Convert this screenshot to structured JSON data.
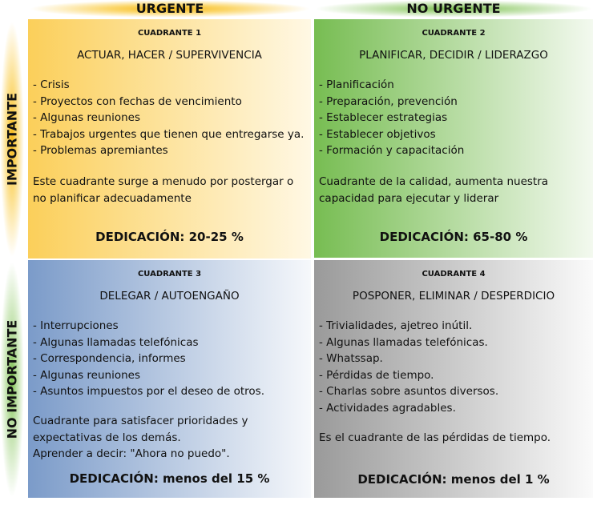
{
  "columns": [
    "URGENTE",
    "NO URGENTE"
  ],
  "rows": [
    "IMPORTANTE",
    "NO IMPORTANTE"
  ],
  "colors": {
    "q1": "#fbcf5a",
    "q2": "#77bd52",
    "q3": "#7b9bc9",
    "q4": "#9a9a9a"
  },
  "quadrants": [
    {
      "title": "CUADRANTE 1",
      "subtitle": "ACTUAR, HACER / SUPERVIVENCIA",
      "items": [
        "- Crisis",
        "- Proyectos con fechas de vencimiento",
        "- Algunas reuniones",
        "- Trabajos urgentes que tienen que entregarse ya.",
        "- Problemas apremiantes"
      ],
      "description": [
        "Este cuadrante surge a menudo por postergar o",
        "no planificar adecuadamente"
      ],
      "dedication": "DEDICACIÓN: 20-25 %"
    },
    {
      "title": "CUADRANTE 2",
      "subtitle": "PLANIFICAR, DECIDIR / LIDERAZGO",
      "items": [
        "- Planificación",
        "- Preparación, prevención",
        "- Establecer estrategias",
        "- Establecer objetivos",
        "- Formación y capacitación"
      ],
      "description": [
        "Cuadrante de la calidad, aumenta nuestra",
        "capacidad para ejecutar y liderar"
      ],
      "dedication": "DEDICACIÓN: 65-80 %"
    },
    {
      "title": "CUADRANTE 3",
      "subtitle": "DELEGAR / AUTOENGAÑO",
      "items": [
        "- Interrupciones",
        "- Algunas llamadas telefónicas",
        "- Correspondencia, informes",
        "- Algunas reuniones",
        "- Asuntos impuestos por el deseo de otros."
      ],
      "description": [
        "Cuadrante para satisfacer prioridades y",
        "expectativas de los demás.",
        "Aprender a decir: \"Ahora no puedo\"."
      ],
      "dedication": "DEDICACIÓN: menos del 15 %"
    },
    {
      "title": "CUADRANTE 4",
      "subtitle": "POSPONER, ELIMINAR / DESPERDICIO",
      "items": [
        "- Trivialidades, ajetreo inútil.",
        "- Algunas llamadas telefónicas.",
        "- Whatssap.",
        "- Pérdidas de tiempo.",
        "- Charlas sobre asuntos diversos.",
        "- Actividades agradables."
      ],
      "description": [
        "Es el cuadrante de las pérdidas de tiempo."
      ],
      "dedication": "DEDICACIÓN: menos del 1 %"
    }
  ]
}
